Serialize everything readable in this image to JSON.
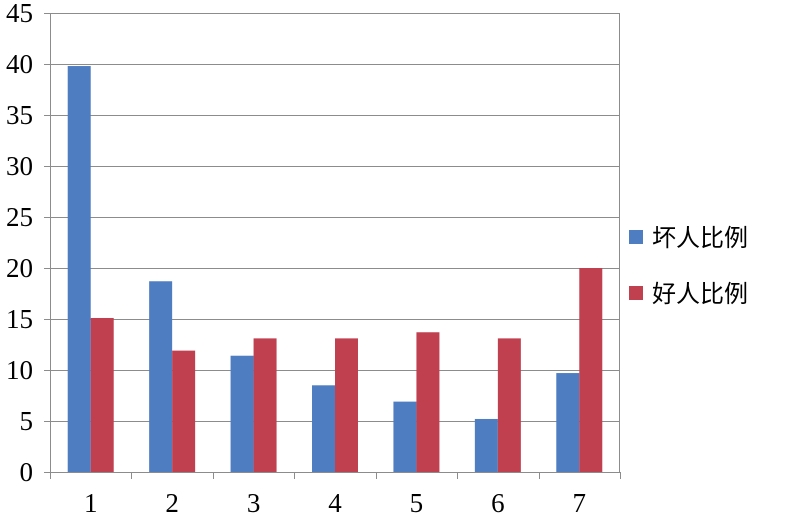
{
  "chart_data": {
    "type": "bar",
    "title": "",
    "xlabel": "",
    "ylabel": "",
    "categories": [
      "1",
      "2",
      "3",
      "4",
      "5",
      "6",
      "7"
    ],
    "series": [
      {
        "name": "坏人比例",
        "color": "#4f7dc1",
        "values": [
          39.8,
          18.7,
          11.4,
          8.5,
          6.9,
          5.2,
          9.7
        ]
      },
      {
        "name": "好人比例",
        "color": "#c0404f",
        "values": [
          15.1,
          11.9,
          13.1,
          13.1,
          13.7,
          13.1,
          20.0
        ]
      }
    ],
    "ylim": [
      0,
      45
    ],
    "yticks": [
      0,
      5,
      10,
      15,
      20,
      25,
      30,
      35,
      40,
      45
    ],
    "grid": true,
    "legend_position": "right"
  }
}
